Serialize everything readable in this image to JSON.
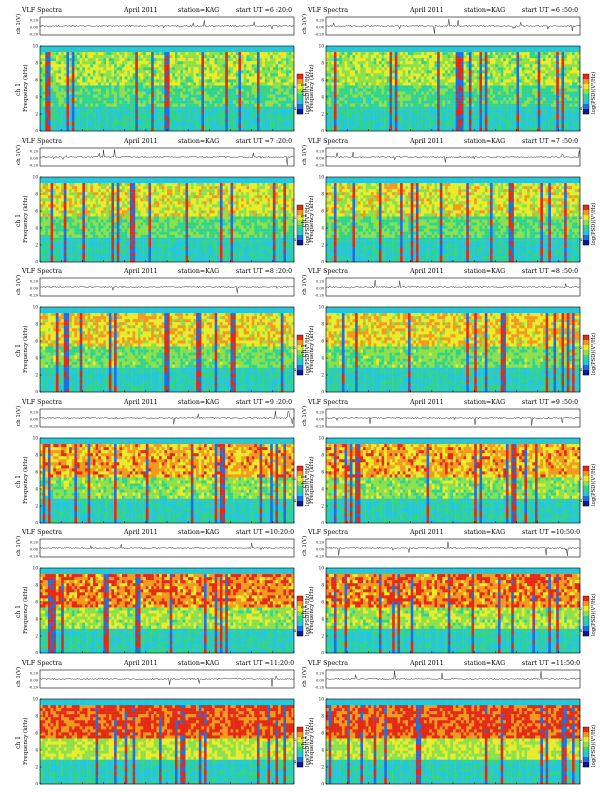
{
  "figure": {
    "colors": {
      "spectrogram": [
        "#0a1a8c",
        "#1e6fe0",
        "#27c7d8",
        "#32d48a",
        "#8ee04a",
        "#e8ec2a",
        "#f29a1e",
        "#e42a14"
      ],
      "waveform": "#222222",
      "frame": "#000000"
    }
  },
  "chart_data": [
    {
      "type": "heatmap",
      "title_parts": [
        "VLF Spectra",
        "April 2011",
        "station=KAG",
        "start UT =6 :20:0"
      ],
      "waveform": {
        "ylabel": "ch 1(V)",
        "yticks": [
          "0.20",
          "0.00",
          "-0.20"
        ],
        "ylim": [
          -0.3,
          0.3
        ]
      },
      "spectrogram": {
        "ylabel_ch": "ch 1",
        "ylabel": "Frequency (kHz)",
        "yticks": [
          0,
          2,
          4,
          6,
          8,
          10
        ],
        "ylim": [
          0,
          10
        ]
      },
      "xlabel": "Time (sec)",
      "xticks": [
        0,
        10,
        20,
        30,
        40,
        50,
        60,
        70,
        80,
        90,
        100,
        110,
        120
      ],
      "xlim": [
        0,
        120
      ],
      "colorbar": {
        "label": "log(PSD)(V²/Hz)",
        "ticks": [
          "-2",
          "-4"
        ]
      }
    },
    {
      "type": "heatmap",
      "title_parts": [
        "VLF Spectra",
        "April 2011",
        "station=KAG",
        "start UT =6 :50:0"
      ],
      "waveform": {
        "ylabel": "ch 1(V)",
        "yticks": [
          "0.20",
          "0.00",
          "-0.20"
        ],
        "ylim": [
          -0.3,
          0.3
        ]
      },
      "spectrogram": {
        "ylabel_ch": "ch 1",
        "ylabel": "Frequency (kHz)",
        "yticks": [
          0,
          2,
          4,
          6,
          8,
          10
        ],
        "ylim": [
          0,
          10
        ]
      },
      "xlabel": "Time (sec)",
      "xticks": [
        0,
        10,
        20,
        30,
        40,
        50,
        60,
        70,
        80,
        90,
        100,
        110,
        120
      ],
      "xlim": [
        0,
        120
      ],
      "colorbar": {
        "label": "log(PSD)(V²/Hz)",
        "ticks": [
          "-2",
          "-4"
        ]
      }
    },
    {
      "type": "heatmap",
      "title_parts": [
        "VLF Spectra",
        "April 2011",
        "station=KAG",
        "start UT =7 :20:0"
      ],
      "waveform": {
        "ylabel": "ch 1(V)",
        "yticks": [
          "0.20",
          "0.00",
          "-0.20"
        ],
        "ylim": [
          -0.3,
          0.3
        ]
      },
      "spectrogram": {
        "ylabel_ch": "ch 1",
        "ylabel": "Frequency (kHz)",
        "yticks": [
          0,
          2,
          4,
          6,
          8,
          10
        ],
        "ylim": [
          0,
          10
        ]
      },
      "xlabel": "Time (sec)",
      "xticks": [
        0,
        10,
        20,
        30,
        40,
        50,
        60,
        70,
        80,
        90,
        100,
        110,
        120
      ],
      "xlim": [
        0,
        120
      ],
      "colorbar": {
        "label": "log(PSD)(V²/Hz)",
        "ticks": [
          "-2",
          "-4"
        ]
      }
    },
    {
      "type": "heatmap",
      "title_parts": [
        "VLF Spectra",
        "April 2011",
        "station=KAG",
        "start UT =7 :50:0"
      ],
      "waveform": {
        "ylabel": "ch 1(V)",
        "yticks": [
          "0.20",
          "0.00",
          "-0.20"
        ],
        "ylim": [
          -0.3,
          0.3
        ]
      },
      "spectrogram": {
        "ylabel_ch": "ch 1",
        "ylabel": "Frequency (kHz)",
        "yticks": [
          0,
          2,
          4,
          6,
          8,
          10
        ],
        "ylim": [
          0,
          10
        ]
      },
      "xlabel": "Time (sec)",
      "xticks": [
        0,
        10,
        20,
        30,
        40,
        50,
        60,
        70,
        80,
        90,
        100,
        110,
        120
      ],
      "xlim": [
        0,
        120
      ],
      "colorbar": {
        "label": "log(PSD)(V²/Hz)",
        "ticks": [
          "-2",
          "-4"
        ]
      }
    },
    {
      "type": "heatmap",
      "title_parts": [
        "VLF Spectra",
        "April 2011",
        "station=KAG",
        "start UT =8 :20:0"
      ],
      "waveform": {
        "ylabel": "ch 1(V)",
        "yticks": [
          "0.20",
          "0.00",
          "-0.20"
        ],
        "ylim": [
          -0.3,
          0.3
        ]
      },
      "spectrogram": {
        "ylabel_ch": "ch 1",
        "ylabel": "Frequency (kHz)",
        "yticks": [
          0,
          2,
          4,
          6,
          8,
          10
        ],
        "ylim": [
          0,
          10
        ]
      },
      "xlabel": "Time (sec)",
      "xticks": [
        0,
        10,
        20,
        30,
        40,
        50,
        60,
        70,
        80,
        90,
        100,
        110,
        120
      ],
      "xlim": [
        0,
        120
      ],
      "colorbar": {
        "label": "log(PSD)(V²/Hz)",
        "ticks": [
          "-2",
          "-4"
        ]
      }
    },
    {
      "type": "heatmap",
      "title_parts": [
        "VLF Spectra",
        "April 2011",
        "station=KAG",
        "start UT =8 :50:0"
      ],
      "waveform": {
        "ylabel": "ch 1(V)",
        "yticks": [
          "0.20",
          "0.00",
          "-0.20"
        ],
        "ylim": [
          -0.3,
          0.3
        ]
      },
      "spectrogram": {
        "ylabel_ch": "ch 1",
        "ylabel": "Frequency (kHz)",
        "yticks": [
          0,
          2,
          4,
          6,
          8,
          10
        ],
        "ylim": [
          0,
          10
        ]
      },
      "xlabel": "Time (sec)",
      "xticks": [
        0,
        10,
        20,
        30,
        40,
        50,
        60,
        70,
        80,
        90,
        100,
        110,
        120
      ],
      "xlim": [
        0,
        120
      ],
      "colorbar": {
        "label": "log(PSD)(V²/Hz)",
        "ticks": [
          "-2",
          "-4"
        ]
      }
    },
    {
      "type": "heatmap",
      "title_parts": [
        "VLF Spectra",
        "April 2011",
        "station=KAG",
        "start UT =9 :20:0"
      ],
      "waveform": {
        "ylabel": "ch 1(V)",
        "yticks": [
          "0.20",
          "0.00",
          "-0.20"
        ],
        "ylim": [
          -0.3,
          0.3
        ]
      },
      "spectrogram": {
        "ylabel_ch": "ch 1",
        "ylabel": "Frequency (kHz)",
        "yticks": [
          0,
          2,
          4,
          6,
          8,
          10
        ],
        "ylim": [
          0,
          10
        ]
      },
      "xlabel": "Time (sec)",
      "xticks": [
        0,
        10,
        20,
        30,
        40,
        50,
        60,
        70,
        80,
        90,
        100,
        110,
        120
      ],
      "xlim": [
        0,
        120
      ],
      "colorbar": {
        "label": "log(PSD)(V²/Hz)",
        "ticks": [
          "-2",
          "-4"
        ]
      }
    },
    {
      "type": "heatmap",
      "title_parts": [
        "VLF Spectra",
        "April 2011",
        "station=KAG",
        "start UT =9 :50:0"
      ],
      "waveform": {
        "ylabel": "ch 1(V)",
        "yticks": [
          "0.20",
          "0.00",
          "-0.20"
        ],
        "ylim": [
          -0.3,
          0.3
        ]
      },
      "spectrogram": {
        "ylabel_ch": "ch 1",
        "ylabel": "Frequency (kHz)",
        "yticks": [
          0,
          2,
          4,
          6,
          8,
          10
        ],
        "ylim": [
          0,
          10
        ]
      },
      "xlabel": "Time (sec)",
      "xticks": [
        0,
        10,
        20,
        30,
        40,
        50,
        60,
        70,
        80,
        90,
        100,
        110,
        120
      ],
      "xlim": [
        0,
        120
      ],
      "colorbar": {
        "label": "log(PSD)(V²/Hz)",
        "ticks": [
          "-2",
          "-4"
        ]
      }
    },
    {
      "type": "heatmap",
      "title_parts": [
        "VLF Spectra",
        "April 2011",
        "station=KAG",
        "start UT =10:20:0"
      ],
      "waveform": {
        "ylabel": "ch 1(V)",
        "yticks": [
          "0.20",
          "0.00",
          "-0.20"
        ],
        "ylim": [
          -0.3,
          0.3
        ]
      },
      "spectrogram": {
        "ylabel_ch": "ch 1",
        "ylabel": "Frequency (kHz)",
        "yticks": [
          0,
          2,
          4,
          6,
          8,
          10
        ],
        "ylim": [
          0,
          10
        ]
      },
      "xlabel": "Time (sec)",
      "xticks": [
        0,
        10,
        20,
        30,
        40,
        50,
        60,
        70,
        80,
        90,
        100,
        110,
        120
      ],
      "xlim": [
        0,
        120
      ],
      "colorbar": {
        "label": "log(PSD)(V²/Hz)",
        "ticks": [
          "-2",
          "-4"
        ]
      }
    },
    {
      "type": "heatmap",
      "title_parts": [
        "VLF Spectra",
        "April 2011",
        "station=KAG",
        "start UT =10:50:0"
      ],
      "waveform": {
        "ylabel": "ch 1(V)",
        "yticks": [
          "0.20",
          "0.00",
          "-0.20"
        ],
        "ylim": [
          -0.3,
          0.3
        ]
      },
      "spectrogram": {
        "ylabel_ch": "ch 1",
        "ylabel": "Frequency (kHz)",
        "yticks": [
          0,
          2,
          4,
          6,
          8,
          10
        ],
        "ylim": [
          0,
          10
        ]
      },
      "xlabel": "Time (sec)",
      "xticks": [
        0,
        10,
        20,
        30,
        40,
        50,
        60,
        70,
        80,
        90,
        100,
        110,
        120
      ],
      "xlim": [
        0,
        120
      ],
      "colorbar": {
        "label": "log(PSD)(V²/Hz)",
        "ticks": [
          "-2",
          "-4"
        ]
      }
    },
    {
      "type": "heatmap",
      "title_parts": [
        "VLF Spectra",
        "April 2011",
        "station=KAG",
        "start UT =11:20:0"
      ],
      "waveform": {
        "ylabel": "ch 1(V)",
        "yticks": [
          "0.20",
          "0.00",
          "-0.20"
        ],
        "ylim": [
          -0.3,
          0.3
        ]
      },
      "spectrogram": {
        "ylabel_ch": "ch 1",
        "ylabel": "Frequency (kHz)",
        "yticks": [
          0,
          2,
          4,
          6,
          8,
          10
        ],
        "ylim": [
          0,
          10
        ]
      },
      "xlabel": "Time (sec)",
      "xticks": [
        0,
        10,
        20,
        30,
        40,
        50,
        60,
        70,
        80,
        90,
        100,
        110,
        120
      ],
      "xlim": [
        0,
        120
      ],
      "colorbar": {
        "label": "log(PSD)(V²/Hz)",
        "ticks": [
          "-2",
          "-4"
        ]
      }
    },
    {
      "type": "heatmap",
      "title_parts": [
        "VLF Spectra",
        "April 2011",
        "station=KAG",
        "start UT =11:50:0"
      ],
      "waveform": {
        "ylabel": "ch 1(V)",
        "yticks": [
          "0.20",
          "0.00",
          "-0.20"
        ],
        "ylim": [
          -0.3,
          0.3
        ]
      },
      "spectrogram": {
        "ylabel_ch": "ch 1",
        "ylabel": "Frequency (kHz)",
        "yticks": [
          0,
          2,
          4,
          6,
          8,
          10
        ],
        "ylim": [
          0,
          10
        ]
      },
      "xlabel": "Time (sec)",
      "xticks": [
        0,
        10,
        20,
        30,
        40,
        50,
        60,
        70,
        80,
        90,
        100,
        110,
        120
      ],
      "xlim": [
        0,
        120
      ],
      "colorbar": {
        "label": "log(PSD)(V²/Hz)",
        "ticks": [
          "-2",
          "-4"
        ]
      }
    }
  ]
}
